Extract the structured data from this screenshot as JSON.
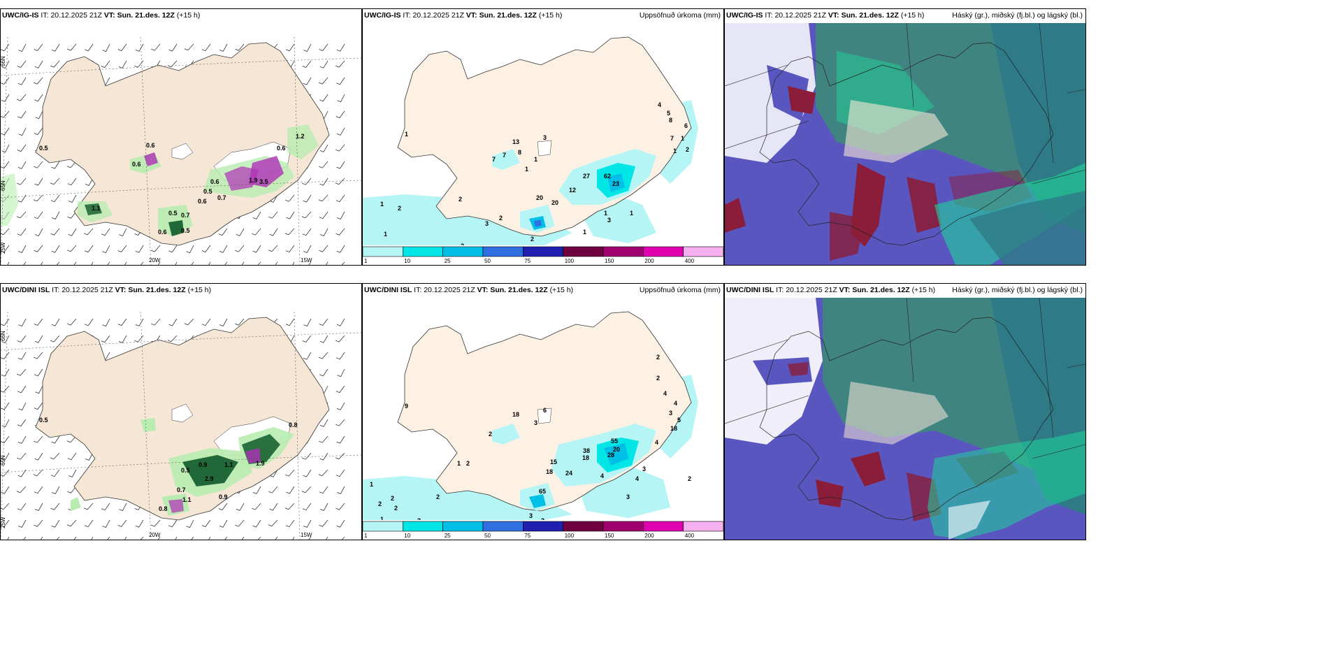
{
  "rows": [
    {
      "model": "UWC/IG-IS",
      "it_label": "IT:",
      "it_value": "20.12.2025 21Z",
      "vt_label": "VT:",
      "vt_value": "Sun. 21.des. 12Z",
      "lead": "(+15 h)",
      "precip_title": "Uppsöfnuð úrkoma (mm)",
      "cloud_title": "Háský (gr.), miðský (fj.bl.) og lágský (bl.)",
      "wind_labels": [
        "0.5",
        "0.6",
        "0.6",
        "0.5",
        "0.6",
        "0.7",
        "0.6",
        "0.5",
        "0.7",
        "1.2",
        "3.5",
        "0.5",
        "1.1",
        "0.6",
        "0.6",
        "1.9"
      ],
      "precip_labels": [
        "1",
        "2",
        "3",
        "2",
        "2",
        "1",
        "2",
        "1",
        "1",
        "13",
        "8",
        "7",
        "7",
        "3",
        "1",
        "20",
        "12",
        "20",
        "27",
        "62",
        "23",
        "1",
        "2",
        "1",
        "1",
        "3",
        "4",
        "5",
        "8",
        "7",
        "1",
        "2",
        "1",
        "6"
      ],
      "coord_labels": [
        "66N",
        "65N",
        "20W",
        "15W",
        "25W"
      ]
    },
    {
      "model": "UWC/DINI ISL",
      "it_label": "IT:",
      "it_value": "20.12.2025 21Z",
      "vt_label": "VT:",
      "vt_value": "Sun. 21.des. 12Z",
      "lead": "(+15 h)",
      "precip_title": "Uppsöfnuð úrkoma (mm)",
      "cloud_title": "Háský (gr.), miðský (fj.bl.) og lágský (bl.)",
      "wind_labels": [
        "0.5",
        "0.9",
        "0.5",
        "1.1",
        "0.7",
        "1.1",
        "2.9",
        "0.9",
        "0.8",
        "0.8",
        "1.9"
      ],
      "precip_labels": [
        "9",
        "18",
        "6",
        "3",
        "2",
        "1",
        "2",
        "2",
        "2",
        "1",
        "2",
        "1",
        "2",
        "2",
        "3",
        "3",
        "15",
        "18",
        "38",
        "24",
        "18",
        "65",
        "28",
        "20",
        "4",
        "4",
        "3",
        "4",
        "18",
        "55",
        "2",
        "4",
        "3",
        "5",
        "4",
        "2",
        "3",
        "2"
      ],
      "coord_labels": [
        "66N",
        "65N",
        "20W",
        "15W",
        "25W"
      ]
    }
  ],
  "colorbar": {
    "labels": [
      "1",
      "10",
      "25",
      "50",
      "75",
      "100",
      "150",
      "200",
      "400"
    ],
    "colors": [
      "#b6f5f5",
      "#00e6e6",
      "#00bfe6",
      "#2f6fe0",
      "#2020b0",
      "#6e0040",
      "#a0006e",
      "#e000b0",
      "#f5b0f0"
    ]
  },
  "colors": {
    "land": "#f5e6d6",
    "precip_land": "#fdf1e4",
    "sea_cloud": "#5a56c0",
    "mid_cloud": "#3d8a7a",
    "high_cloud": "#2e7a86",
    "low_edge": "#1fd39a",
    "red_cloud": "#8a1e3a",
    "green_precip": "#b9ecb0",
    "dark_green": "#0f5a2a",
    "magenta": "#b030b8"
  }
}
